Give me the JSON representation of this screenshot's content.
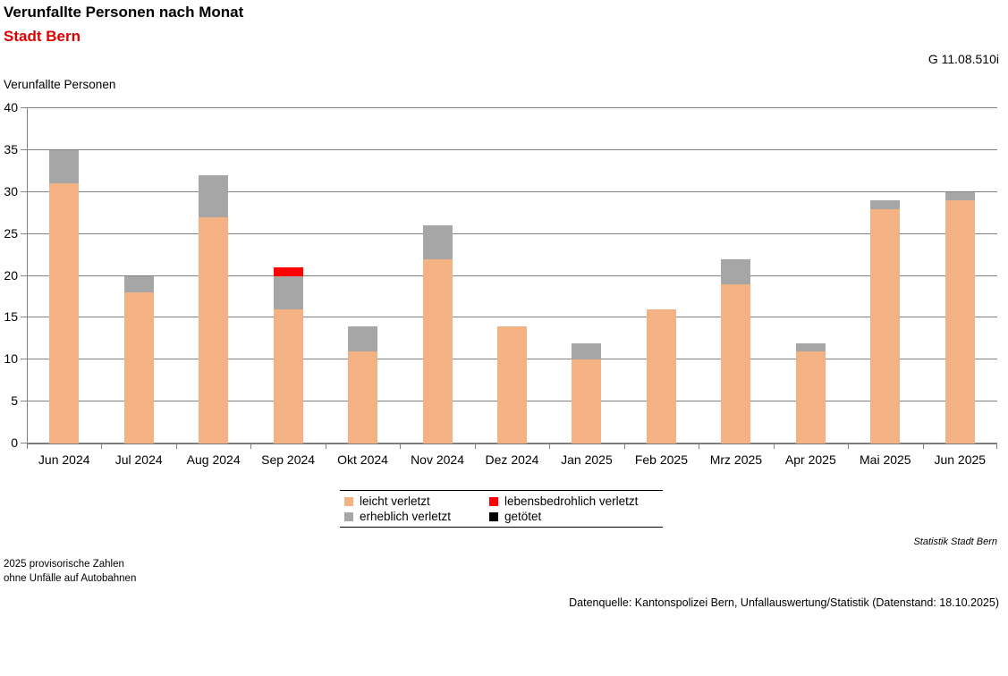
{
  "header": {
    "title": "Verunfallte Personen nach Monat",
    "subtitle": "Stadt Bern",
    "graphic_number": "G 11.08.510i",
    "subtitle_color": "#e00000"
  },
  "chart_data": {
    "type": "bar",
    "stacked": true,
    "title": "Verunfallte Personen nach Monat",
    "subtitle": "Stadt Bern",
    "ylabel": "Verunfallte Personen",
    "xlabel": "",
    "ylim": [
      0,
      40
    ],
    "ytick_step": 5,
    "yticks": [
      0,
      5,
      10,
      15,
      20,
      25,
      30,
      35,
      40
    ],
    "grid": true,
    "legend_position": "bottom",
    "categories": [
      "Jun 2024",
      "Jul 2024",
      "Aug 2024",
      "Sep 2024",
      "Okt 2024",
      "Nov 2024",
      "Dez 2024",
      "Jan 2025",
      "Feb 2025",
      "Mrz 2025",
      "Apr 2025",
      "Mai 2025",
      "Jun 2025"
    ],
    "series": [
      {
        "name": "leicht verletzt",
        "color": "#f4b183",
        "values": [
          31,
          18,
          27,
          16,
          11,
          22,
          14,
          10,
          16,
          19,
          11,
          28,
          29
        ]
      },
      {
        "name": "erheblich verletzt",
        "color": "#a6a6a6",
        "values": [
          4,
          2,
          5,
          4,
          3,
          4,
          0,
          2,
          0,
          3,
          1,
          1,
          1
        ]
      },
      {
        "name": "lebensbedrohlich verletzt",
        "color": "#ff0000",
        "values": [
          0,
          0,
          0,
          1,
          0,
          0,
          0,
          0,
          0,
          0,
          0,
          0,
          0
        ]
      },
      {
        "name": "getötet",
        "color": "#000000",
        "values": [
          0,
          0,
          0,
          0,
          0,
          0,
          0,
          0,
          0,
          0,
          0,
          0,
          0
        ]
      }
    ],
    "totals": [
      35,
      20,
      32,
      21,
      14,
      26,
      14,
      12,
      16,
      22,
      12,
      29,
      30
    ],
    "legend_display_order": [
      "leicht verletzt",
      "lebensbedrohlich verletzt",
      "erheblich verletzt",
      "getötet"
    ]
  },
  "footer": {
    "statistik_note": "Statistik Stadt Bern",
    "note1": "2025 provisorische Zahlen",
    "note2": "ohne Unfälle auf Autobahnen",
    "datasource": "Datenquelle: Kantonspolizei Bern, Unfallauswertung/Statistik (Datenstand: 18.10.2025)"
  }
}
